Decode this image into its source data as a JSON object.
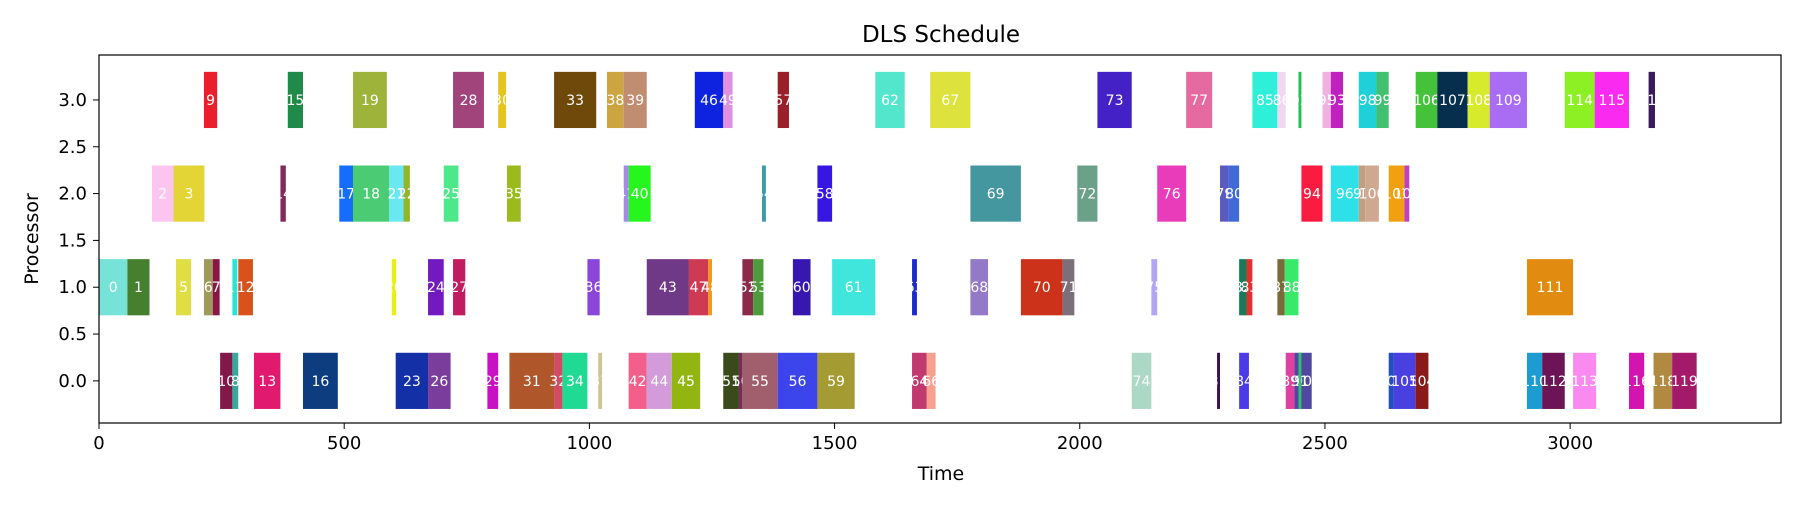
{
  "chart_data": {
    "type": "bar",
    "title": "DLS Schedule",
    "xlabel": "Time",
    "ylabel": "Processor",
    "xlim": [
      0,
      3430
    ],
    "ylim": [
      -0.45,
      3.48
    ],
    "xticks": [
      "0",
      "500",
      "1000",
      "1500",
      "2000",
      "2500",
      "3000"
    ],
    "yticks": [
      "0.0",
      "0.5",
      "1.0",
      "1.5",
      "2.0",
      "2.5",
      "3.0"
    ],
    "grid": false,
    "tasks": [
      {
        "id": "0",
        "proc": 1,
        "start": 0,
        "end": 58,
        "color": "#77e3d8"
      },
      {
        "id": "1",
        "proc": 1,
        "start": 58,
        "end": 103,
        "color": "#46802f"
      },
      {
        "id": "2",
        "proc": 2,
        "start": 108,
        "end": 152,
        "color": "#fcc5ef"
      },
      {
        "id": "3",
        "proc": 2,
        "start": 152,
        "end": 215,
        "color": "#e3d535"
      },
      {
        "id": "5",
        "proc": 1,
        "start": 157,
        "end": 188,
        "color": "#e0de45"
      },
      {
        "id": "6",
        "proc": 1,
        "start": 214,
        "end": 232,
        "color": "#9e9a5d"
      },
      {
        "id": "7",
        "proc": 1,
        "start": 232,
        "end": 246,
        "color": "#8a1646"
      },
      {
        "id": "9",
        "proc": 3,
        "start": 214,
        "end": 241,
        "color": "#ea1f2b"
      },
      {
        "id": "10",
        "proc": 0,
        "start": 247,
        "end": 272,
        "color": "#83174a"
      },
      {
        "id": "8",
        "proc": 0,
        "start": 272,
        "end": 284,
        "color": "#3aa79f"
      },
      {
        "id": "11",
        "proc": 1,
        "start": 272,
        "end": 282,
        "color": "#2ee2d3"
      },
      {
        "id": "12",
        "proc": 1,
        "start": 284,
        "end": 314,
        "color": "#d8531b"
      },
      {
        "id": "13",
        "proc": 0,
        "start": 316,
        "end": 370,
        "color": "#e21a6f"
      },
      {
        "id": "14",
        "proc": 2,
        "start": 370,
        "end": 381,
        "color": "#802b59"
      },
      {
        "id": "15",
        "proc": 3,
        "start": 385,
        "end": 416,
        "color": "#208a48"
      },
      {
        "id": "16",
        "proc": 0,
        "start": 416,
        "end": 487,
        "color": "#0d3c7f"
      },
      {
        "id": "17",
        "proc": 2,
        "start": 490,
        "end": 518,
        "color": "#166dfc"
      },
      {
        "id": "18",
        "proc": 2,
        "start": 518,
        "end": 592,
        "color": "#4bcb73"
      },
      {
        "id": "19",
        "proc": 3,
        "start": 518,
        "end": 587,
        "color": "#9db339"
      },
      {
        "id": "21",
        "proc": 2,
        "start": 592,
        "end": 621,
        "color": "#6ae8f2"
      },
      {
        "id": "22",
        "proc": 2,
        "start": 621,
        "end": 634,
        "color": "#94b42b"
      },
      {
        "id": "20",
        "proc": 1,
        "start": 597,
        "end": 606,
        "color": "#e8ef1a"
      },
      {
        "id": "23",
        "proc": 0,
        "start": 605,
        "end": 671,
        "color": "#1330a6"
      },
      {
        "id": "24",
        "proc": 1,
        "start": 671,
        "end": 703,
        "color": "#7219c0"
      },
      {
        "id": "26",
        "proc": 0,
        "start": 671,
        "end": 717,
        "color": "#7b3d9b"
      },
      {
        "id": "25",
        "proc": 2,
        "start": 703,
        "end": 733,
        "color": "#4ee88b"
      },
      {
        "id": "27",
        "proc": 1,
        "start": 722,
        "end": 747,
        "color": "#c11c60"
      },
      {
        "id": "28",
        "proc": 3,
        "start": 722,
        "end": 785,
        "color": "#a0447b"
      },
      {
        "id": "29",
        "proc": 0,
        "start": 792,
        "end": 814,
        "color": "#c811c2"
      },
      {
        "id": "30",
        "proc": 3,
        "start": 814,
        "end": 830,
        "color": "#e5c420"
      },
      {
        "id": "31",
        "proc": 0,
        "start": 837,
        "end": 928,
        "color": "#b0562b"
      },
      {
        "id": "35",
        "proc": 2,
        "start": 832,
        "end": 860,
        "color": "#9bbb1c"
      },
      {
        "id": "33",
        "proc": 3,
        "start": 928,
        "end": 1014,
        "color": "#6e4909"
      },
      {
        "id": "32",
        "proc": 0,
        "start": 928,
        "end": 945,
        "color": "#d04c62"
      },
      {
        "id": "34",
        "proc": 0,
        "start": 945,
        "end": 996,
        "color": "#20d993"
      },
      {
        "id": "37",
        "proc": 0,
        "start": 1018,
        "end": 1026,
        "color": "#cfc494"
      },
      {
        "id": "36",
        "proc": 1,
        "start": 996,
        "end": 1021,
        "color": "#8b46d9"
      },
      {
        "id": "38",
        "proc": 3,
        "start": 1036,
        "end": 1070,
        "color": "#cca440"
      },
      {
        "id": "39",
        "proc": 3,
        "start": 1070,
        "end": 1117,
        "color": "#c08d70"
      },
      {
        "id": "41",
        "proc": 2,
        "start": 1070,
        "end": 1080,
        "color": "#a58ae8"
      },
      {
        "id": "40",
        "proc": 2,
        "start": 1080,
        "end": 1125,
        "color": "#26f51f"
      },
      {
        "id": "42",
        "proc": 0,
        "start": 1080,
        "end": 1117,
        "color": "#f25f8b"
      },
      {
        "id": "43",
        "proc": 1,
        "start": 1117,
        "end": 1203,
        "color": "#703988"
      },
      {
        "id": "44",
        "proc": 0,
        "start": 1117,
        "end": 1168,
        "color": "#d39bda"
      },
      {
        "id": "45",
        "proc": 0,
        "start": 1168,
        "end": 1226,
        "color": "#92b512"
      },
      {
        "id": "47",
        "proc": 1,
        "start": 1203,
        "end": 1242,
        "color": "#cf3a53"
      },
      {
        "id": "48",
        "proc": 1,
        "start": 1242,
        "end": 1250,
        "color": "#f3971e"
      },
      {
        "id": "46",
        "proc": 3,
        "start": 1215,
        "end": 1273,
        "color": "#0e23df"
      },
      {
        "id": "49",
        "proc": 3,
        "start": 1273,
        "end": 1292,
        "color": "#e090e0"
      },
      {
        "id": "51",
        "proc": 0,
        "start": 1273,
        "end": 1305,
        "color": "#3a4a1a"
      },
      {
        "id": "50",
        "proc": 0,
        "start": 1305,
        "end": 1312,
        "color": "#7a2a5a"
      },
      {
        "id": "52",
        "proc": 1,
        "start": 1312,
        "end": 1334,
        "color": "#8c2a4c"
      },
      {
        "id": "53",
        "proc": 1,
        "start": 1334,
        "end": 1355,
        "color": "#4c9c3c"
      },
      {
        "id": "55",
        "proc": 0,
        "start": 1312,
        "end": 1384,
        "color": "#a15f6e"
      },
      {
        "id": "54",
        "proc": 2,
        "start": 1352,
        "end": 1360,
        "color": "#3e9aaa"
      },
      {
        "id": "57",
        "proc": 3,
        "start": 1384,
        "end": 1407,
        "color": "#9a1f2a"
      },
      {
        "id": "60",
        "proc": 1,
        "start": 1415,
        "end": 1451,
        "color": "#3618b0"
      },
      {
        "id": "56",
        "proc": 0,
        "start": 1384,
        "end": 1465,
        "color": "#3b45eb"
      },
      {
        "id": "58",
        "proc": 2,
        "start": 1465,
        "end": 1495,
        "color": "#3616e0"
      },
      {
        "id": "59",
        "proc": 0,
        "start": 1465,
        "end": 1541,
        "color": "#a49b33"
      },
      {
        "id": "61",
        "proc": 1,
        "start": 1495,
        "end": 1583,
        "color": "#40e6dc"
      },
      {
        "id": "62",
        "proc": 3,
        "start": 1583,
        "end": 1643,
        "color": "#54e6cc"
      },
      {
        "id": "63",
        "proc": 1,
        "start": 1658,
        "end": 1668,
        "color": "#1c2ad0"
      },
      {
        "id": "64",
        "proc": 0,
        "start": 1658,
        "end": 1688,
        "color": "#c13a6e"
      },
      {
        "id": "66",
        "proc": 0,
        "start": 1688,
        "end": 1706,
        "color": "#f7a08e"
      },
      {
        "id": "67",
        "proc": 3,
        "start": 1695,
        "end": 1777,
        "color": "#dde33c"
      },
      {
        "id": "68",
        "proc": 1,
        "start": 1777,
        "end": 1813,
        "color": "#9479c9"
      },
      {
        "id": "69",
        "proc": 2,
        "start": 1777,
        "end": 1880,
        "color": "#44979f"
      },
      {
        "id": "70",
        "proc": 1,
        "start": 1880,
        "end": 1965,
        "color": "#cc3219"
      },
      {
        "id": "71",
        "proc": 1,
        "start": 1965,
        "end": 1989,
        "color": "#7d6f7a"
      },
      {
        "id": "72",
        "proc": 2,
        "start": 1995,
        "end": 2036,
        "color": "#6ba08b"
      },
      {
        "id": "73",
        "proc": 3,
        "start": 2036,
        "end": 2106,
        "color": "#4420c7"
      },
      {
        "id": "74",
        "proc": 0,
        "start": 2106,
        "end": 2146,
        "color": "#acd8c6"
      },
      {
        "id": "75",
        "proc": 1,
        "start": 2146,
        "end": 2158,
        "color": "#b2a6f2"
      },
      {
        "id": "76",
        "proc": 2,
        "start": 2158,
        "end": 2217,
        "color": "#e83cba"
      },
      {
        "id": "77",
        "proc": 3,
        "start": 2217,
        "end": 2270,
        "color": "#e46aa0"
      },
      {
        "id": "81",
        "proc": 0,
        "start": 2280,
        "end": 2286,
        "color": "#3a1050"
      },
      {
        "id": "79",
        "proc": 2,
        "start": 2286,
        "end": 2304,
        "color": "#5a5ac0"
      },
      {
        "id": "80",
        "proc": 2,
        "start": 2304,
        "end": 2325,
        "color": "#3f6ad8"
      },
      {
        "id": "82",
        "proc": 1,
        "start": 2325,
        "end": 2340,
        "color": "#1a7a5a"
      },
      {
        "id": "83",
        "proc": 1,
        "start": 2340,
        "end": 2352,
        "color": "#e03030"
      },
      {
        "id": "84",
        "proc": 0,
        "start": 2325,
        "end": 2345,
        "color": "#4a3ae8"
      },
      {
        "id": "85",
        "proc": 3,
        "start": 2352,
        "end": 2403,
        "color": "#2ef0d8"
      },
      {
        "id": "86",
        "proc": 3,
        "start": 2403,
        "end": 2420,
        "color": "#f0d8f0"
      },
      {
        "id": "87",
        "proc": 1,
        "start": 2403,
        "end": 2418,
        "color": "#7a6a3a"
      },
      {
        "id": "88",
        "proc": 1,
        "start": 2418,
        "end": 2446,
        "color": "#3ae86a"
      },
      {
        "id": "89",
        "proc": 0,
        "start": 2420,
        "end": 2438,
        "color": "#e040a0"
      },
      {
        "id": "90",
        "proc": 0,
        "start": 2438,
        "end": 2473,
        "color": "#5048a0"
      },
      {
        "id": "91",
        "proc": 0,
        "start": 2446,
        "end": 2452,
        "color": "#30c070"
      },
      {
        "id": "92",
        "proc": 3,
        "start": 2446,
        "end": 2452,
        "color": "#20c050"
      },
      {
        "id": "94",
        "proc": 2,
        "start": 2452,
        "end": 2495,
        "color": "#fa1c40"
      },
      {
        "id": "95",
        "proc": 3,
        "start": 2495,
        "end": 2512,
        "color": "#f0b0e0"
      },
      {
        "id": "93",
        "proc": 3,
        "start": 2512,
        "end": 2537,
        "color": "#c020c0"
      },
      {
        "id": "96",
        "proc": 2,
        "start": 2512,
        "end": 2569,
        "color": "#2ee0e8"
      },
      {
        "id": "97",
        "proc": 2,
        "start": 2569,
        "end": 2582,
        "color": "#c0a080"
      },
      {
        "id": "100",
        "proc": 2,
        "start": 2582,
        "end": 2610,
        "color": "#d0a890"
      },
      {
        "id": "98",
        "proc": 3,
        "start": 2569,
        "end": 2605,
        "color": "#20d0d8"
      },
      {
        "id": "99",
        "proc": 3,
        "start": 2605,
        "end": 2630,
        "color": "#40c070"
      },
      {
        "id": "101",
        "proc": 2,
        "start": 2630,
        "end": 2662,
        "color": "#f0a010"
      },
      {
        "id": "102",
        "proc": 2,
        "start": 2662,
        "end": 2672,
        "color": "#c040c0"
      },
      {
        "id": "103",
        "proc": 0,
        "start": 2630,
        "end": 2640,
        "color": "#2050c0"
      },
      {
        "id": "105",
        "proc": 0,
        "start": 2640,
        "end": 2685,
        "color": "#4a40e0"
      },
      {
        "id": "104",
        "proc": 0,
        "start": 2685,
        "end": 2711,
        "color": "#8a1a1a"
      },
      {
        "id": "106",
        "proc": 3,
        "start": 2685,
        "end": 2729,
        "color": "#44c23a"
      },
      {
        "id": "107",
        "proc": 3,
        "start": 2729,
        "end": 2791,
        "color": "#062f4e"
      },
      {
        "id": "108",
        "proc": 3,
        "start": 2791,
        "end": 2836,
        "color": "#d8ea2c"
      },
      {
        "id": "109",
        "proc": 3,
        "start": 2836,
        "end": 2912,
        "color": "#a86df2"
      },
      {
        "id": "110",
        "proc": 0,
        "start": 2912,
        "end": 2943,
        "color": "#1c9cd0"
      },
      {
        "id": "111",
        "proc": 1,
        "start": 2912,
        "end": 3006,
        "color": "#e18c10"
      },
      {
        "id": "112",
        "proc": 0,
        "start": 2943,
        "end": 2989,
        "color": "#6c1456"
      },
      {
        "id": "113",
        "proc": 0,
        "start": 3006,
        "end": 3053,
        "color": "#fb8af0"
      },
      {
        "id": "114",
        "proc": 3,
        "start": 2989,
        "end": 3050,
        "color": "#8cf024"
      },
      {
        "id": "115",
        "proc": 3,
        "start": 3050,
        "end": 3120,
        "color": "#fb2af0"
      },
      {
        "id": "116",
        "proc": 0,
        "start": 3120,
        "end": 3151,
        "color": "#d414b0"
      },
      {
        "id": "117",
        "proc": 3,
        "start": 3160,
        "end": 3173,
        "color": "#3a1a5a"
      },
      {
        "id": "118",
        "proc": 0,
        "start": 3170,
        "end": 3208,
        "color": "#b08a40"
      },
      {
        "id": "119",
        "proc": 0,
        "start": 3208,
        "end": 3258,
        "color": "#a41a6a"
      }
    ]
  }
}
